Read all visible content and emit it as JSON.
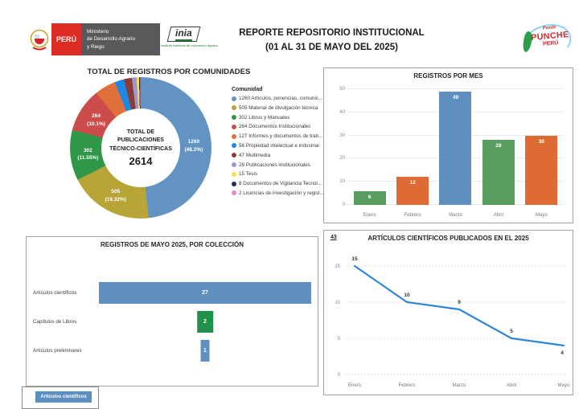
{
  "header": {
    "peru": {
      "country": "PERÚ",
      "ministry_l1": "Ministerio",
      "ministry_l2": "de Desarrollo Agrario",
      "ministry_l3": "y Riego"
    },
    "inia": {
      "name": "inia",
      "subtitle": "Instituto Nacional de Innovación Agraria"
    },
    "title_line1": "REPORTE REPOSITORIO INSTITUCIONAL",
    "title_line2": "(01 AL 31 DE MAYO DEL 2025)",
    "punche": {
      "line1": "Ponte",
      "line2": "PUNCHE",
      "line3": "PERÚ"
    }
  },
  "chart_data": [
    {
      "type": "pie",
      "title": "TOTAL DE REGISTROS POR COMUNIDADES",
      "center_l1": "TOTAL DE",
      "center_l2": "PUBLICACIONES",
      "center_l3": "TÉCNICO-CIENTÍFICAS",
      "center_total": "2614",
      "legend_title": "Comunidad",
      "donut": true,
      "slices": [
        {
          "value": 1260,
          "pct": "48.2%",
          "label": "Artículos, ponencias, comunic...",
          "color": "#6293c3"
        },
        {
          "value": 505,
          "pct": "19.32%",
          "label": "Material de divulgación técnica",
          "color": "#b8a437"
        },
        {
          "value": 302,
          "pct": "11.55%",
          "label": "Libros y Manuales",
          "color": "#2e9748"
        },
        {
          "value": 264,
          "pct": "10.1%",
          "label": "Documentos Institucionales",
          "color": "#cc4b4b"
        },
        {
          "value": 127,
          "label": "Informes y documentos de trab...",
          "color": "#e0703a"
        },
        {
          "value": 56,
          "label": "Propiedad intelectual e industrial",
          "color": "#1e88e5"
        },
        {
          "value": 47,
          "label": "Multimedia",
          "color": "#8e3b34"
        },
        {
          "value": 28,
          "label": "Publicaciones institucionales",
          "color": "#9b97d6"
        },
        {
          "value": 15,
          "label": "Tesis",
          "color": "#f0e345"
        },
        {
          "value": 8,
          "label": "Documentos de Vigilancia Tecnol...",
          "color": "#1f2a6b"
        },
        {
          "value": 2,
          "label": "Licencias de investigación y regist...",
          "color": "#e38ccb"
        }
      ]
    },
    {
      "type": "bar",
      "title": "REGISTROS POR MES",
      "categories": [
        "Enero",
        "Febrero",
        "Marzo",
        "Abril",
        "Mayo"
      ],
      "values": [
        6,
        12,
        49,
        28,
        30
      ],
      "colors": [
        "#5a9e5f",
        "#dd6b33",
        "#6090c0",
        "#5a9e5f",
        "#dd6b33"
      ],
      "ylim": [
        0,
        50
      ],
      "yticks": [
        0,
        10,
        20,
        30,
        40,
        50
      ],
      "grid": "dotted"
    },
    {
      "type": "bar",
      "orientation": "horizontal-funnel",
      "title": "REGISTROS DE MAYO 2025, POR COLECCIÓN",
      "categories": [
        "Artículos científicos",
        "Capítulos de Libros",
        "Artículos preliminares"
      ],
      "values": [
        27,
        2,
        1
      ],
      "colors": [
        "#6090c0",
        "#21904b",
        "#6090c0"
      ]
    },
    {
      "type": "line",
      "title": "ARTÍCULOS CIENTÍFICOS PUBLICADOS EN EL 2025",
      "total_label": "43",
      "x": [
        "Enero",
        "Febrero",
        "Marzo",
        "Abril",
        "Mayo"
      ],
      "values": [
        15,
        10,
        9,
        5,
        4
      ],
      "yticks": [
        0,
        5,
        10,
        15
      ],
      "ylim": [
        0,
        17
      ],
      "line_color": "#2e86d8",
      "grid": "dotted"
    }
  ],
  "bottom_tab": {
    "label": "Artículos científicos"
  }
}
